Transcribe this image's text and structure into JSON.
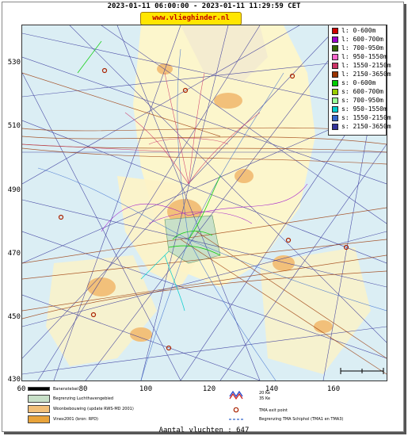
{
  "header": {
    "title": "2023-01-11 06:00:00 - 2023-01-11 11:29:59 CET",
    "brand": "www.vlieghinder.nl"
  },
  "axes": {
    "y_ticks": [
      "430",
      "450",
      "470",
      "490",
      "510",
      "530"
    ],
    "x_ticks": [
      "60",
      "80",
      "100",
      "120",
      "140",
      "160"
    ]
  },
  "legend": {
    "items": [
      {
        "label": "l: 0-600m",
        "color": "#cc0000"
      },
      {
        "label": "l: 600-700m",
        "color": "#9900cc"
      },
      {
        "label": "l: 700-950m",
        "color": "#336600"
      },
      {
        "label": "l: 950-1550m",
        "color": "#ff66cc"
      },
      {
        "label": "l: 1550-2150m",
        "color": "#cc3366"
      },
      {
        "label": "l: 2150-3650m",
        "color": "#993300"
      },
      {
        "label": "s: 0-600m",
        "color": "#00cc00"
      },
      {
        "label": "s: 600-700m",
        "color": "#99cc00"
      },
      {
        "label": "s: 700-950m",
        "color": "#99ff99"
      },
      {
        "label": "s: 950-1550m",
        "color": "#00cccc"
      },
      {
        "label": "s: 1550-2150m",
        "color": "#3366cc"
      },
      {
        "label": "s: 2150-3650m",
        "color": "#333399"
      }
    ]
  },
  "key": {
    "runway": "Banenstelsel",
    "airport_boundary": "Begrenzing Luchthavengebied",
    "housing": "Woonbebouwing (update RWS-MD 2001)",
    "vinex": "Vinex2001 (bron: RPD)",
    "noise_20": "20 Ke",
    "noise_35": "35 Ke",
    "tma_exit": "TMA exit point",
    "tma_boundary": "Begrenzing TMA Schiphol  (TMA1 en TMA3)"
  },
  "footer": {
    "count": "Aantal vluchten : 647"
  }
}
